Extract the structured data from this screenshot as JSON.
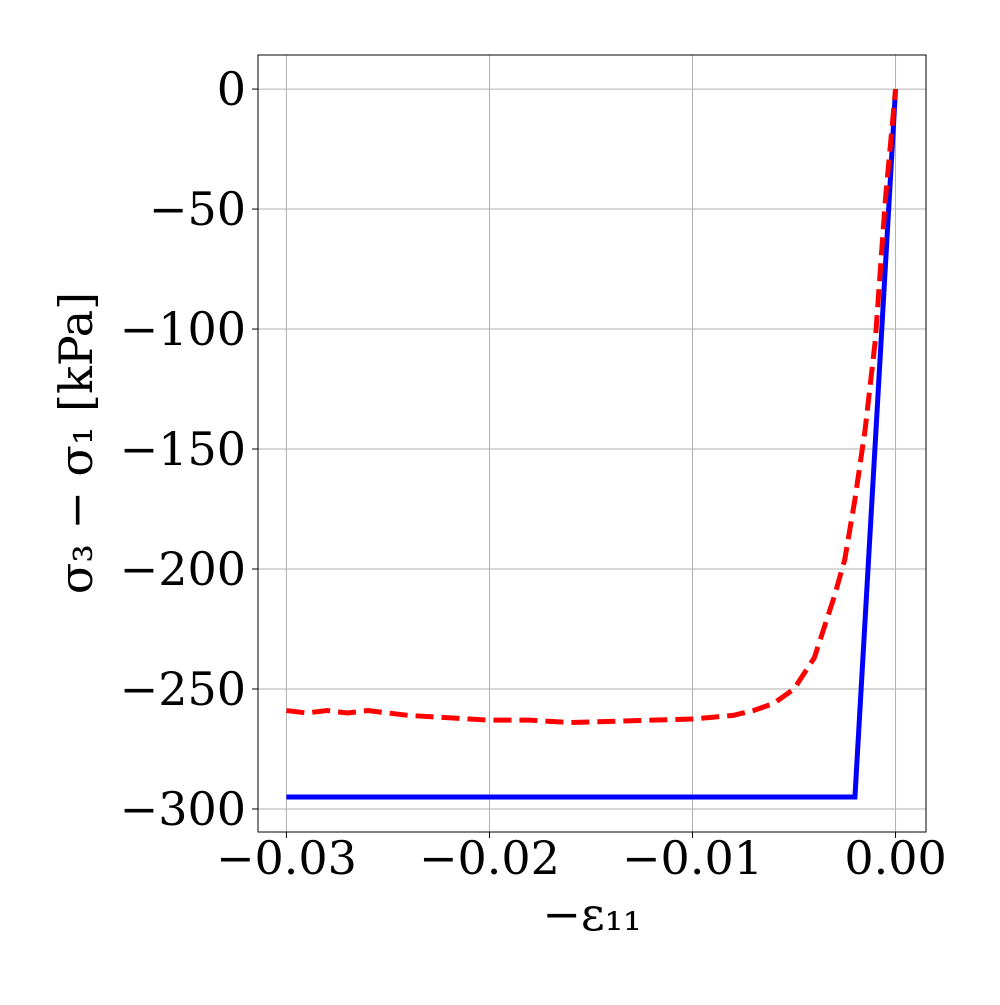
{
  "chart_data": {
    "type": "line",
    "xlabel": "−ε₁₁",
    "ylabel": "σ₃ − σ₁ [kPa]",
    "series": [
      {
        "color": "#0000ff",
        "style": "solid",
        "x": [
          -0.03,
          -0.002,
          0.0
        ],
        "values": [
          -295,
          -295,
          0
        ]
      },
      {
        "color": "#ff0000",
        "style": "dashed",
        "x": [
          -0.03,
          -0.029,
          -0.028,
          -0.027,
          -0.026,
          -0.025,
          -0.024,
          -0.022,
          -0.02,
          -0.018,
          -0.016,
          -0.014,
          -0.012,
          -0.01,
          -0.008,
          -0.007,
          -0.006,
          -0.005,
          -0.004,
          -0.003,
          -0.0025,
          -0.002,
          -0.0015,
          -0.001,
          -0.0005,
          0.0
        ],
        "values": [
          -259,
          -260,
          -259,
          -260,
          -259,
          -260,
          -261,
          -262,
          -263,
          -263,
          -264,
          -263.5,
          -263,
          -262.5,
          -261,
          -259,
          -256,
          -250,
          -237,
          -211,
          -196,
          -171,
          -142,
          -105,
          -46,
          0
        ]
      }
    ],
    "xlim": [
      -0.0314,
      0.0015
    ],
    "ylim": [
      -309.6,
      14.2
    ],
    "xticks": [
      {
        "value": -0.03,
        "label": "−0.03"
      },
      {
        "value": -0.02,
        "label": "−0.02"
      },
      {
        "value": -0.01,
        "label": "−0.01"
      },
      {
        "value": 0.0,
        "label": "0.00"
      }
    ],
    "yticks": [
      {
        "value": -300,
        "label": "−300"
      },
      {
        "value": -250,
        "label": "−250"
      },
      {
        "value": -200,
        "label": "−200"
      },
      {
        "value": -150,
        "label": "−150"
      },
      {
        "value": -100,
        "label": "−100"
      },
      {
        "value": -50,
        "label": "−50"
      },
      0
    ],
    "grid": true
  }
}
